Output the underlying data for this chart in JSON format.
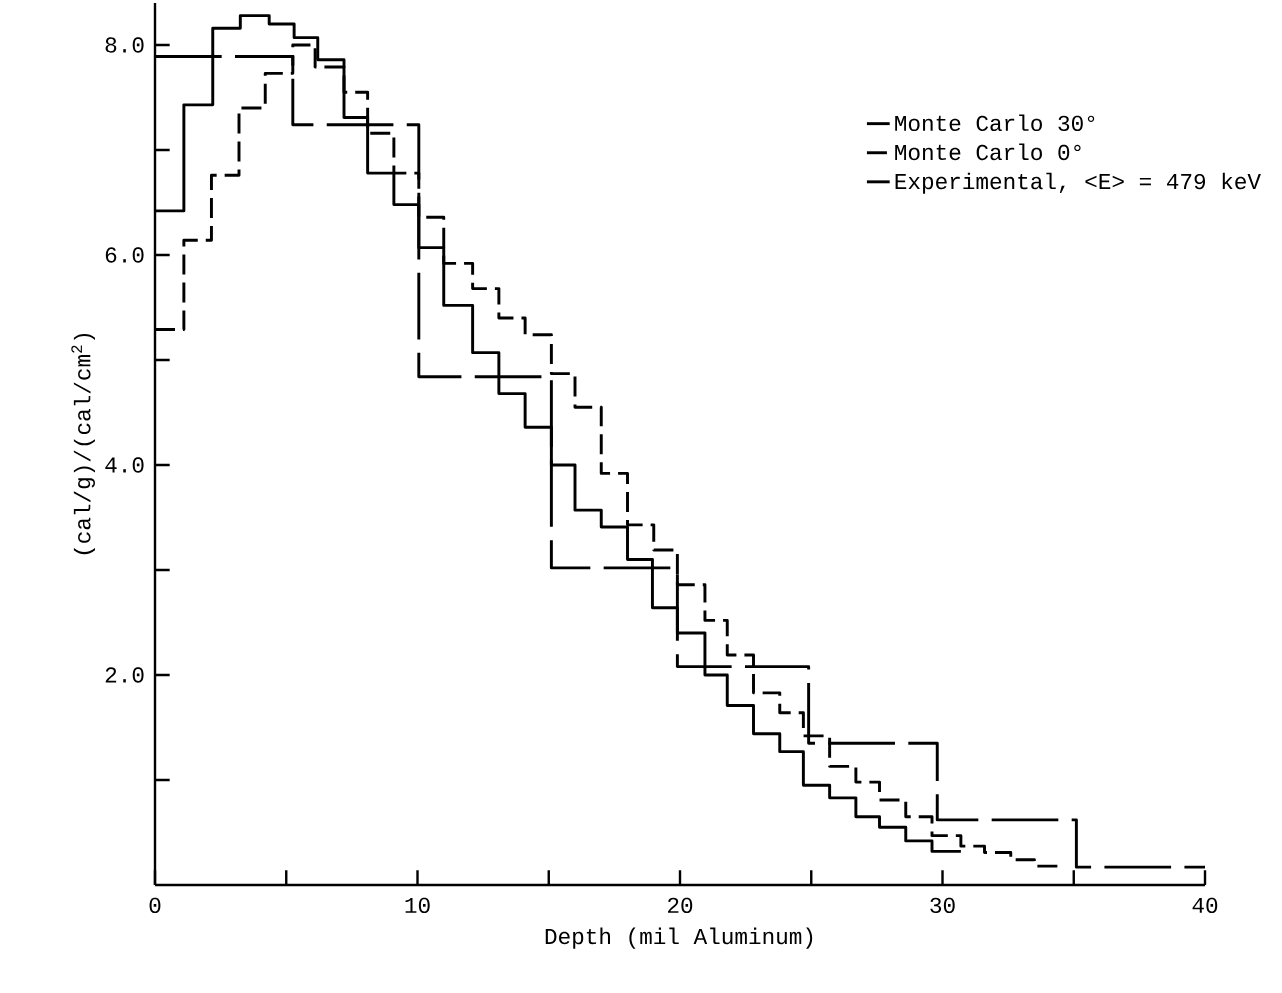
{
  "chart_data": {
    "type": "step",
    "xlabel": "Depth (mil Aluminum)",
    "ylabel": "(cal/g)/(cal/cm$^{2}$)",
    "xlim": [
      0,
      40
    ],
    "ylim": [
      0,
      8.4
    ],
    "xticks": [
      0,
      {
        "value": 5,
        "label": null
      },
      10,
      {
        "value": 15,
        "label": null
      },
      20,
      {
        "value": 25,
        "label": null
      },
      30,
      {
        "value": 35,
        "label": null
      },
      40
    ],
    "yticks": [
      {
        "value": 1,
        "label": null
      },
      {
        "value": 2,
        "label": "2.0"
      },
      {
        "value": 3,
        "label": null
      },
      {
        "value": 4,
        "label": "4.0"
      },
      {
        "value": 5,
        "label": null
      },
      {
        "value": 6,
        "label": "6.0"
      },
      {
        "value": 7,
        "label": null
      },
      {
        "value": 8,
        "label": "8.0"
      }
    ],
    "legend": "top right",
    "series": [
      {
        "name": "Monte Carlo 30°",
        "color": "#000000",
        "line_style": "solid",
        "x": [
          0,
          1.1,
          2.2,
          3.25,
          4.35,
          5.3,
          6.2,
          7.2,
          8.1,
          9.1,
          10.05,
          11.0,
          12.1,
          13.1,
          14.1,
          15.1,
          16.0,
          17.0,
          18.0,
          18.95,
          19.9,
          20.95,
          21.8,
          22.8,
          23.8,
          24.7,
          25.7,
          26.7,
          27.6,
          28.6,
          29.6,
          30.7
        ],
        "values": [
          6.42,
          7.43,
          8.16,
          8.28,
          8.2,
          8.07,
          7.86,
          7.31,
          6.78,
          6.48,
          6.07,
          5.52,
          5.07,
          4.68,
          4.36,
          4.0,
          3.57,
          3.41,
          3.1,
          2.64,
          2.4,
          2.0,
          1.71,
          1.44,
          1.27,
          0.95,
          0.83,
          0.65,
          0.55,
          0.42,
          0.32,
          0.32
        ]
      },
      {
        "name": "Monte Carlo 0°",
        "color": "#000000",
        "line_style": "dashed",
        "x": [
          0,
          1.1,
          2.15,
          3.2,
          4.2,
          5.25,
          6.1,
          7.2,
          8.1,
          9.1,
          10.05,
          11.0,
          12.1,
          13.1,
          14.1,
          15.1,
          16.0,
          17.0,
          18.0,
          19.0,
          19.9,
          20.95,
          21.8,
          22.8,
          23.8,
          24.7,
          25.7,
          26.7,
          27.6,
          28.6,
          29.6,
          30.7,
          31.6,
          32.6,
          33.5,
          34.5
        ],
        "values": [
          5.29,
          6.14,
          6.76,
          7.4,
          7.73,
          8.0,
          7.79,
          7.55,
          7.16,
          6.78,
          6.36,
          5.92,
          5.68,
          5.4,
          5.24,
          4.87,
          4.55,
          3.92,
          3.43,
          3.19,
          2.86,
          2.52,
          2.19,
          1.83,
          1.64,
          1.42,
          1.13,
          0.98,
          0.81,
          0.65,
          0.47,
          0.37,
          0.31,
          0.24,
          0.18,
          0.18
        ]
      },
      {
        "name": "Experimental, <E> = 479 keV",
        "color": "#000000",
        "line_style": "dashed",
        "x": [
          0,
          5.25,
          10.05,
          15.1,
          19.9,
          24.9,
          29.8,
          35.1,
          40
        ],
        "values": [
          7.89,
          7.24,
          4.84,
          3.02,
          2.08,
          1.35,
          0.62,
          0.17,
          0.17
        ]
      }
    ]
  }
}
